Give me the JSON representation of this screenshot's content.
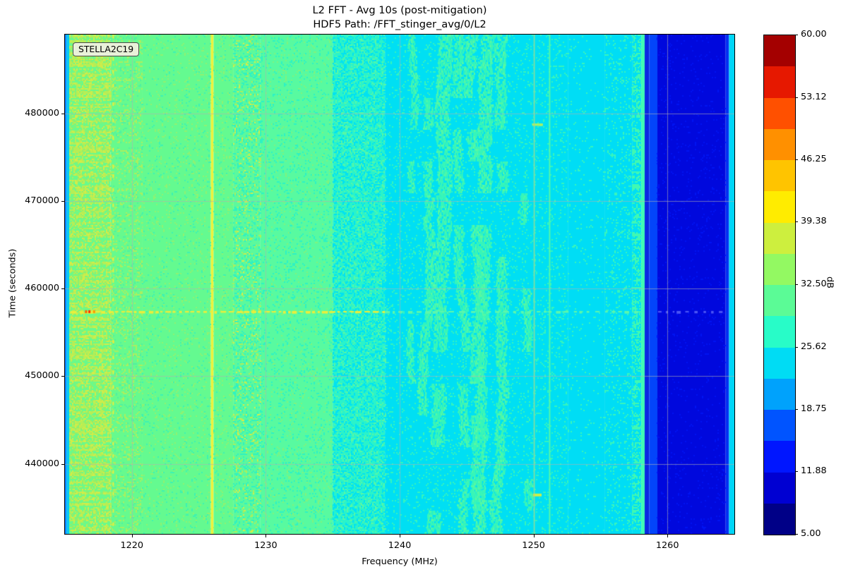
{
  "title_line1": "L2 FFT - Avg 10s (post-mitigation)",
  "title_line2": "HDF5 Path: /FFT_stinger_avg/0/L2",
  "annotation": {
    "label": "STELLA2C19"
  },
  "axes": {
    "xlabel": "Frequency (MHz)",
    "ylabel": "Time (seconds)",
    "x_tick_labels": [
      "1220",
      "1230",
      "1240",
      "1250",
      "1260"
    ],
    "y_tick_labels": [
      "480000",
      "470000",
      "460000",
      "450000",
      "440000"
    ]
  },
  "colorbar": {
    "unit_label": "dB",
    "tick_labels": [
      "60.00",
      "53.12",
      "46.25",
      "39.38",
      "32.50",
      "25.62",
      "18.75",
      "11.88",
      "5.00"
    ],
    "tick_values": [
      60.0,
      53.12,
      46.25,
      39.38,
      32.5,
      25.62,
      18.75,
      11.88,
      5.0
    ],
    "min": 5.0,
    "max": 60.0,
    "segment_colors_bottom_to_top": [
      "#000087",
      "#0000d2",
      "#0016ff",
      "#0054ff",
      "#00a2fc",
      "#00dcf4",
      "#28fcc8",
      "#5bfb96",
      "#93f962",
      "#cdef3e",
      "#ffec00",
      "#ffc400",
      "#ff9000",
      "#ff5000",
      "#e61800",
      "#a40000"
    ]
  },
  "chart_data": {
    "type": "heatmap",
    "title": "L2 FFT - Avg 10s (post-mitigation)",
    "subtitle": "HDF5 Path: /FFT_stinger_avg/0/L2",
    "xlabel": "Frequency (MHz)",
    "ylabel": "Time (seconds)",
    "value_unit": "dB",
    "value_range": [
      5,
      60
    ],
    "x_range": [
      1215,
      1265
    ],
    "y_range": [
      432000,
      489000
    ],
    "x_ticks": [
      1220,
      1230,
      1240,
      1250,
      1260
    ],
    "y_ticks": [
      480000,
      470000,
      460000,
      450000,
      440000
    ],
    "grid": true,
    "grid_color": "rgba(176,176,176,0.6)",
    "bands": [
      {
        "f0": 1215.0,
        "f1": 1215.12,
        "color": "#0080ff",
        "db": 18
      },
      {
        "f0": 1215.12,
        "f1": 1215.32,
        "color": "#00c8f6",
        "db": 21
      },
      {
        "f0": 1215.32,
        "f1": 1218.4,
        "color": "#68fa8c",
        "db": 33,
        "rowNoise": true,
        "speckle": [
          [
            "#b6ee55",
            0.3
          ],
          [
            "#d2ec48",
            0.14
          ],
          [
            "#8cf06e",
            0.14
          ]
        ]
      },
      {
        "f0": 1218.4,
        "f1": 1220.8,
        "color": "#66fa8e",
        "db": 31,
        "rowNoise": true,
        "speckle": [
          [
            "#a9f05f",
            0.16
          ],
          [
            "#50f0a2",
            0.07
          ]
        ]
      },
      {
        "f0": 1220.8,
        "f1": 1225.9,
        "color": "#64fa90",
        "db": 30.5,
        "speckle": [
          [
            "#8ef272",
            0.07
          ],
          [
            "#3df2b2",
            0.05
          ]
        ]
      },
      {
        "f0": 1225.9,
        "f1": 1226.1,
        "color": "#eef23a",
        "db": 40
      },
      {
        "f0": 1226.1,
        "f1": 1227.6,
        "color": "#64fa90",
        "db": 30.5,
        "speckle": [
          [
            "#8ef272",
            0.08
          ],
          [
            "#3df2b2",
            0.06
          ]
        ]
      },
      {
        "f0": 1227.6,
        "f1": 1229.6,
        "color": "#5cf99c",
        "db": 30,
        "rowNoise": true,
        "speckle": [
          [
            "#2ff2c2",
            0.2
          ],
          [
            "#aaf05c",
            0.09
          ],
          [
            "#d8ee46",
            0.03
          ]
        ]
      },
      {
        "f0": 1229.6,
        "f1": 1235.0,
        "color": "#58faa0",
        "db": 29.5,
        "speckle": [
          [
            "#2df2c4",
            0.1
          ],
          [
            "#7ef47e",
            0.06
          ]
        ]
      },
      {
        "f0": 1235.0,
        "f1": 1238.9,
        "color": "#2af3ca",
        "db": 27,
        "speckle": [
          [
            "#00e2f2",
            0.3
          ],
          [
            "#55f8a6",
            0.16
          ]
        ]
      },
      {
        "f0": 1238.9,
        "f1": 1252.6,
        "color": "#00dff3",
        "db": 24.5,
        "speckle": [
          [
            "#35f4be",
            0.1
          ]
        ]
      },
      {
        "f0": 1252.6,
        "f1": 1255.3,
        "color": "#00ddf5",
        "db": 24,
        "speckle": [
          [
            "#38f5bc",
            0.04
          ]
        ]
      },
      {
        "f0": 1255.3,
        "f1": 1257.4,
        "color": "#00ddf5",
        "db": 24,
        "rowNoise": true,
        "speckle": [
          [
            "#38f5bc",
            0.12
          ]
        ]
      },
      {
        "f0": 1257.4,
        "f1": 1258.05,
        "color": "#00dff3",
        "db": 25,
        "rowNoise": true,
        "speckle": [
          [
            "#40f8b2",
            0.38
          ]
        ]
      },
      {
        "f0": 1258.05,
        "f1": 1258.3,
        "color": "#3efcb2",
        "db": 28
      },
      {
        "f0": 1258.3,
        "f1": 1258.65,
        "color": "#0a28e2",
        "db": 12
      },
      {
        "f0": 1258.65,
        "f1": 1259.25,
        "color": "#0345fa",
        "db": 16
      },
      {
        "f0": 1259.25,
        "f1": 1264.35,
        "color": "#0008dd",
        "db": 10,
        "speckle": [
          [
            "#0013f2",
            0.06
          ]
        ]
      },
      {
        "f0": 1264.35,
        "f1": 1264.6,
        "color": "#0330f2",
        "db": 14
      },
      {
        "f0": 1264.6,
        "f1": 1265.0,
        "color": "#00d6f8",
        "db": 23
      }
    ],
    "blotch_streaks": [
      {
        "f": 1240.9,
        "w": 6,
        "p": 0.5,
        "color": "#38f6b8",
        "core": "#58f9a2",
        "db": 27.5
      },
      {
        "f": 1242.2,
        "w": 8,
        "p": 0.55,
        "color": "#38f6b8",
        "core": "#58f9a2",
        "db": 27.5
      },
      {
        "f": 1243.5,
        "w": 12,
        "p": 0.8,
        "color": "#38f6b8",
        "core": "#58f9a2",
        "db": 28
      },
      {
        "f": 1244.4,
        "w": 8,
        "p": 0.6,
        "color": "#38f6b8",
        "core": "#58f9a2",
        "db": 27.5
      },
      {
        "f": 1245.4,
        "w": 10,
        "p": 0.7,
        "color": "#38f6b8",
        "core": "#58f9a2",
        "db": 28
      },
      {
        "f": 1246.6,
        "w": 12,
        "p": 0.75,
        "color": "#38f6b8",
        "core": "#58f9a2",
        "db": 28
      },
      {
        "f": 1247.7,
        "w": 9,
        "p": 0.6,
        "color": "#38f6b8",
        "core": "#58f9a2",
        "db": 27.5
      },
      {
        "f": 1248.9,
        "w": 7,
        "p": 0.5,
        "color": "#38f6b8",
        "core": "#58f9a2",
        "db": 27.5
      }
    ],
    "vlines": [
      {
        "f": 1250.0,
        "w": 2,
        "color": "#55f8a5",
        "db": 27
      },
      {
        "f": 1251.15,
        "w": 2,
        "color": "#55f8a5",
        "db": 27
      },
      {
        "f": 1218.55,
        "w": 2,
        "color": "#e9ee3c",
        "dash": [
          5,
          15
        ],
        "db": 39
      }
    ],
    "hstreaks": [
      {
        "t": 457450,
        "h": 3,
        "spans": [
          {
            "f0": 1215.4,
            "f1": 1238.9,
            "color": "#e9ee3b",
            "dash": [
              6,
              4
            ]
          },
          {
            "f0": 1238.9,
            "f1": 1258.0,
            "color": "#5df7ab",
            "dash": [
              6,
              6
            ]
          },
          {
            "f0": 1259.3,
            "f1": 1264.3,
            "color": "#4b55f5",
            "dash": [
              4,
              6
            ]
          }
        ],
        "dots": [
          {
            "f": 1216.55,
            "color": "#ff6000"
          },
          {
            "f": 1216.8,
            "color": "#ff2600"
          },
          {
            "f": 1217.15,
            "color": "#ff9800"
          }
        ]
      },
      {
        "t": 478850,
        "h": 3,
        "spans": [
          {
            "f0": 1249.9,
            "f1": 1250.7,
            "color": "#aaf065",
            "dash": [
              14,
              0
            ]
          }
        ],
        "dots": []
      },
      {
        "t": 436600,
        "h": 3,
        "spans": [
          {
            "f0": 1249.95,
            "f1": 1250.6,
            "color": "#cdee46",
            "dash": [
              14,
              0
            ]
          }
        ],
        "dots": []
      }
    ]
  }
}
